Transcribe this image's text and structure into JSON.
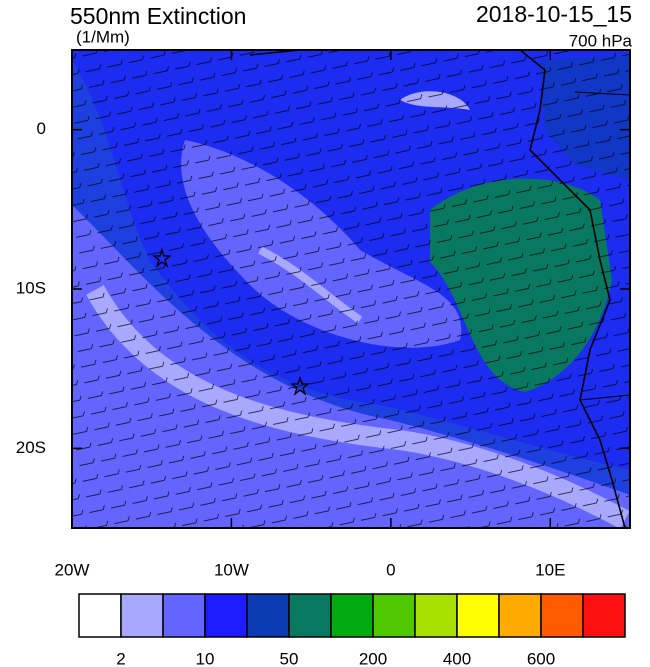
{
  "map": {
    "title": "550nm Extinction",
    "units": "(1/Mm)",
    "time": "2018-10-15_15",
    "level": "700 hPa",
    "lonlim": [
      -20,
      15
    ],
    "latlim": [
      -25,
      5
    ],
    "lon_ticks": [
      {
        "value": -20,
        "label": "20W"
      },
      {
        "value": -10,
        "label": "10W"
      },
      0,
      {
        "value": 10,
        "label": "10E"
      }
    ],
    "lat_ticks": [
      0,
      {
        "value": -10,
        "label": "10S"
      },
      {
        "value": -20,
        "label": "20S"
      }
    ]
  },
  "colorbar": {
    "colors": [
      "#ffffff",
      "#a8a8ff",
      "#6464ff",
      "#1c1cff",
      "#0c3cb4",
      "#087860",
      "#00aa10",
      "#50c800",
      "#a8e000",
      "#ffff00",
      "#ffaa00",
      "#ff5a00",
      "#ff1010"
    ],
    "labels": [
      2,
      10,
      50,
      200,
      400,
      600
    ]
  }
}
